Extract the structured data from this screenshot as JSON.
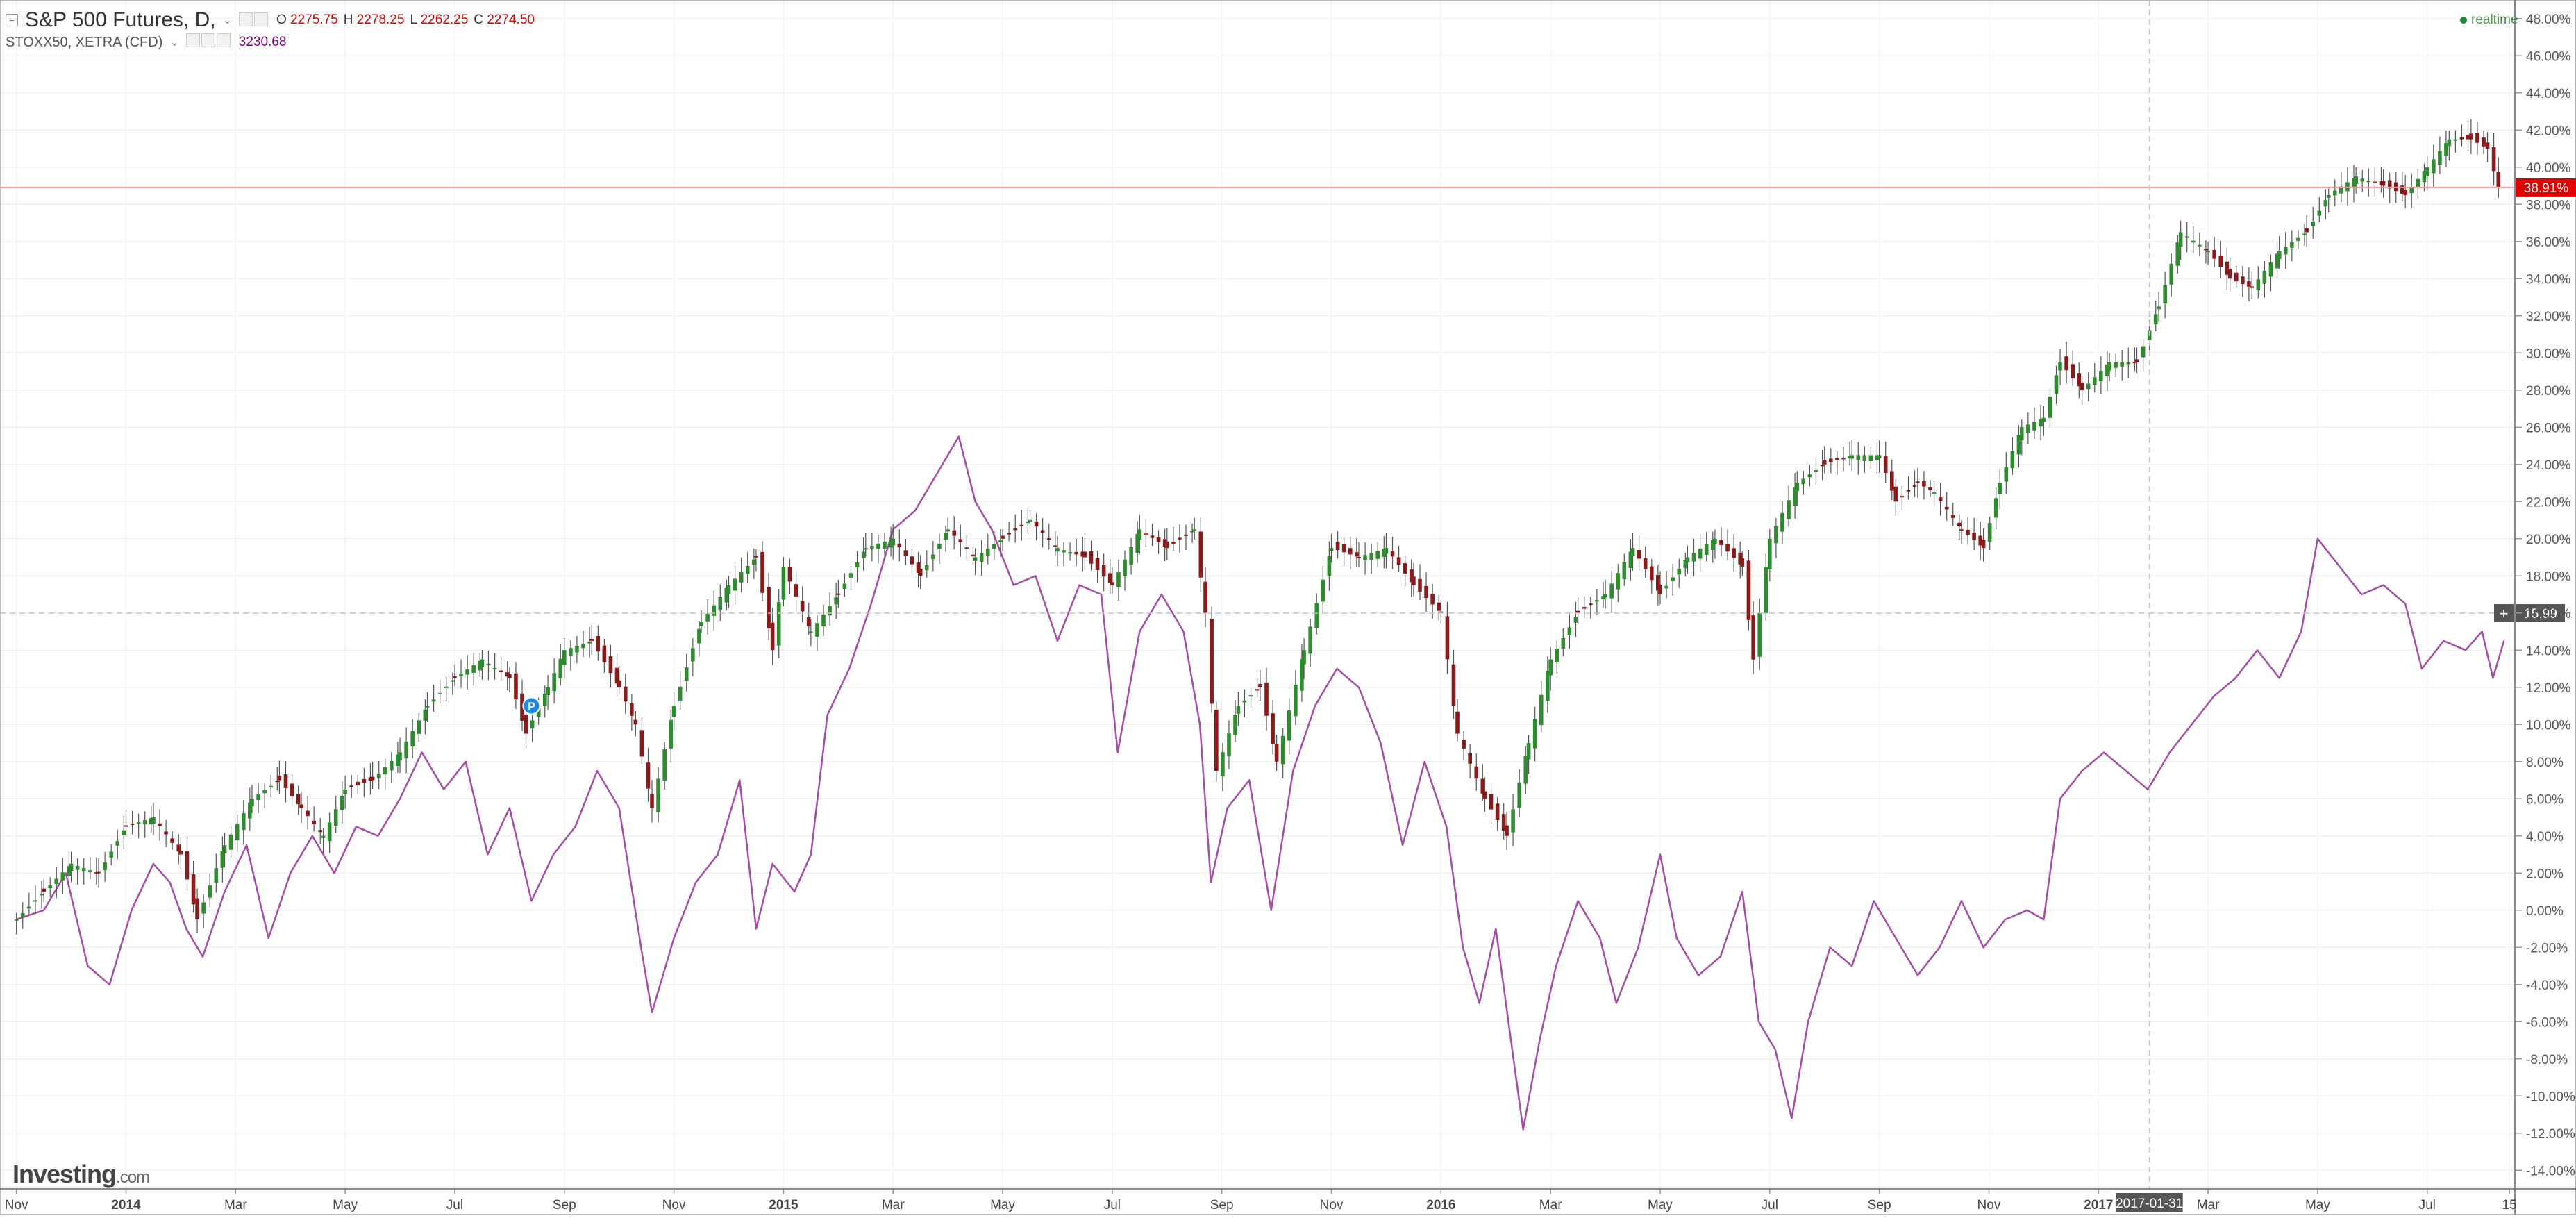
{
  "legend": {
    "main_symbol": "S&P 500 Futures, D,",
    "ohlc": [
      {
        "key": "O",
        "value": "2275.75"
      },
      {
        "key": "H",
        "value": "2278.25"
      },
      {
        "key": "L",
        "value": "2262.25"
      },
      {
        "key": "C",
        "value": "2274.50"
      }
    ],
    "compare_symbol": "STOXX50, XETRA (CFD)",
    "compare_value": "3230.68",
    "realtime_label": "realtime"
  },
  "branding": {
    "logo_text": "Investing",
    "logo_suffix": ".com"
  },
  "colors": {
    "up": "#2e8b2e",
    "down": "#8b1a1a",
    "compare_line": "#a64ca6",
    "last_price": "#e00000",
    "crosshair_badge": "#555555"
  },
  "chart_data": {
    "type": "line",
    "y_axis": {
      "unit": "%",
      "range": [
        -15,
        49
      ],
      "ticks": [
        "48.00%",
        "46.00%",
        "44.00%",
        "42.00%",
        "40.00%",
        "38.00%",
        "36.00%",
        "34.00%",
        "32.00%",
        "30.00%",
        "28.00%",
        "26.00%",
        "24.00%",
        "22.00%",
        "20.00%",
        "18.00%",
        "16.00%",
        "14.00%",
        "12.00%",
        "10.00%",
        "8.00%",
        "6.00%",
        "4.00%",
        "2.00%",
        "0.00%",
        "-2.00%",
        "-4.00%",
        "-6.00%",
        "-8.00%",
        "-10.00%",
        "-12.00%",
        "-14.00%"
      ],
      "position": "right"
    },
    "x_axis": {
      "ticks": [
        {
          "label": "Nov",
          "t": 0.0
        },
        {
          "label": "2014",
          "t": 2.0,
          "bold": true
        },
        {
          "label": "Mar",
          "t": 4.0
        },
        {
          "label": "May",
          "t": 6.0
        },
        {
          "label": "Jul",
          "t": 8.0
        },
        {
          "label": "Sep",
          "t": 10.0
        },
        {
          "label": "Nov",
          "t": 12.0
        },
        {
          "label": "2015",
          "t": 14.0,
          "bold": true
        },
        {
          "label": "Mar",
          "t": 16.0
        },
        {
          "label": "May",
          "t": 18.0
        },
        {
          "label": "Jul",
          "t": 20.0
        },
        {
          "label": "Sep",
          "t": 22.0
        },
        {
          "label": "Nov",
          "t": 24.0
        },
        {
          "label": "2016",
          "t": 26.0,
          "bold": true
        },
        {
          "label": "Mar",
          "t": 28.0
        },
        {
          "label": "May",
          "t": 30.0
        },
        {
          "label": "Jul",
          "t": 32.0
        },
        {
          "label": "Sep",
          "t": 34.0
        },
        {
          "label": "Nov",
          "t": 36.0
        },
        {
          "label": "2017",
          "t": 38.0,
          "bold": true
        },
        {
          "label": "Mar",
          "t": 40.0
        },
        {
          "label": "May",
          "t": 42.0
        },
        {
          "label": "Jul",
          "t": 44.0
        },
        {
          "label": "15",
          "t": 45.5
        }
      ],
      "range": [
        -0.3,
        45.6
      ],
      "crosshair_label": "2017-01-31",
      "crosshair_t": 38.93
    },
    "grid": true,
    "last_price": {
      "value": 38.91,
      "label": "38.91%"
    },
    "crosshair_y": {
      "value": 15.99,
      "label": "15.99"
    },
    "annotations": [
      {
        "label": "P",
        "t": 9.4,
        "value": 11.0
      }
    ],
    "series": [
      {
        "style": "candlestick",
        "points": [
          {
            "t": 0,
            "v": -0.5
          },
          {
            "t": 0.5,
            "v": 1.0
          },
          {
            "t": 1,
            "v": 2.5
          },
          {
            "t": 1.5,
            "v": 2.0
          },
          {
            "t": 2,
            "v": 4.5
          },
          {
            "t": 2.5,
            "v": 5.0
          },
          {
            "t": 3,
            "v": 3.0
          },
          {
            "t": 3.3,
            "v": -0.5
          },
          {
            "t": 3.8,
            "v": 3.5
          },
          {
            "t": 4.3,
            "v": 6.0
          },
          {
            "t": 4.8,
            "v": 7.0
          },
          {
            "t": 5.2,
            "v": 5.5
          },
          {
            "t": 5.6,
            "v": 4.0
          },
          {
            "t": 6,
            "v": 6.5
          },
          {
            "t": 6.5,
            "v": 7.0
          },
          {
            "t": 7,
            "v": 8.5
          },
          {
            "t": 7.5,
            "v": 11.0
          },
          {
            "t": 8,
            "v": 12.5
          },
          {
            "t": 8.5,
            "v": 13.5
          },
          {
            "t": 9,
            "v": 12.5
          },
          {
            "t": 9.3,
            "v": 9.5
          },
          {
            "t": 9.7,
            "v": 12.0
          },
          {
            "t": 10,
            "v": 14.0
          },
          {
            "t": 10.5,
            "v": 14.5
          },
          {
            "t": 11,
            "v": 12.0
          },
          {
            "t": 11.3,
            "v": 10.0
          },
          {
            "t": 11.6,
            "v": 5.5
          },
          {
            "t": 12,
            "v": 11.0
          },
          {
            "t": 12.5,
            "v": 15.5
          },
          {
            "t": 13,
            "v": 17.5
          },
          {
            "t": 13.5,
            "v": 19.0
          },
          {
            "t": 13.8,
            "v": 14.0
          },
          {
            "t": 14,
            "v": 18.5
          },
          {
            "t": 14.5,
            "v": 15.0
          },
          {
            "t": 15,
            "v": 17.0
          },
          {
            "t": 15.5,
            "v": 19.5
          },
          {
            "t": 16,
            "v": 20.0
          },
          {
            "t": 16.5,
            "v": 18.0
          },
          {
            "t": 17,
            "v": 20.5
          },
          {
            "t": 17.5,
            "v": 19.0
          },
          {
            "t": 18,
            "v": 20.0
          },
          {
            "t": 18.5,
            "v": 21.0
          },
          {
            "t": 19,
            "v": 19.5
          },
          {
            "t": 19.5,
            "v": 19.0
          },
          {
            "t": 20,
            "v": 17.5
          },
          {
            "t": 20.5,
            "v": 20.5
          },
          {
            "t": 21,
            "v": 19.5
          },
          {
            "t": 21.5,
            "v": 20.5
          },
          {
            "t": 21.7,
            "v": 16.0
          },
          {
            "t": 21.9,
            "v": 7.5
          },
          {
            "t": 22.3,
            "v": 11.0
          },
          {
            "t": 22.7,
            "v": 12.0
          },
          {
            "t": 23,
            "v": 8.0
          },
          {
            "t": 23.5,
            "v": 14.0
          },
          {
            "t": 24,
            "v": 19.5
          },
          {
            "t": 24.5,
            "v": 19.0
          },
          {
            "t": 25,
            "v": 19.5
          },
          {
            "t": 25.5,
            "v": 17.5
          },
          {
            "t": 26,
            "v": 16.0
          },
          {
            "t": 26.3,
            "v": 9.5
          },
          {
            "t": 26.8,
            "v": 6.0
          },
          {
            "t": 27.2,
            "v": 4.0
          },
          {
            "t": 27.6,
            "v": 9.0
          },
          {
            "t": 28,
            "v": 13.5
          },
          {
            "t": 28.5,
            "v": 16.0
          },
          {
            "t": 29,
            "v": 17.0
          },
          {
            "t": 29.5,
            "v": 19.5
          },
          {
            "t": 30,
            "v": 17.0
          },
          {
            "t": 30.5,
            "v": 19.0
          },
          {
            "t": 31,
            "v": 20.0
          },
          {
            "t": 31.5,
            "v": 18.5
          },
          {
            "t": 31.7,
            "v": 13.5
          },
          {
            "t": 32,
            "v": 20.0
          },
          {
            "t": 32.5,
            "v": 23.0
          },
          {
            "t": 33,
            "v": 24.0
          },
          {
            "t": 33.5,
            "v": 24.5
          },
          {
            "t": 34,
            "v": 24.5
          },
          {
            "t": 34.3,
            "v": 22.0
          },
          {
            "t": 34.7,
            "v": 23.0
          },
          {
            "t": 35,
            "v": 22.5
          },
          {
            "t": 35.5,
            "v": 20.5
          },
          {
            "t": 35.9,
            "v": 19.5
          },
          {
            "t": 36.2,
            "v": 23.0
          },
          {
            "t": 36.6,
            "v": 26.0
          },
          {
            "t": 37,
            "v": 26.5
          },
          {
            "t": 37.3,
            "v": 29.5
          },
          {
            "t": 37.7,
            "v": 28.0
          },
          {
            "t": 38.2,
            "v": 29.5
          },
          {
            "t": 38.7,
            "v": 29.5
          },
          {
            "t": 39.1,
            "v": 32.5
          },
          {
            "t": 39.5,
            "v": 36.5
          },
          {
            "t": 40,
            "v": 35.5
          },
          {
            "t": 40.4,
            "v": 34.0
          },
          {
            "t": 40.8,
            "v": 33.5
          },
          {
            "t": 41.3,
            "v": 35.5
          },
          {
            "t": 41.8,
            "v": 36.5
          },
          {
            "t": 42.2,
            "v": 38.5
          },
          {
            "t": 42.7,
            "v": 39.5
          },
          {
            "t": 43.2,
            "v": 39.0
          },
          {
            "t": 43.6,
            "v": 38.5
          },
          {
            "t": 44,
            "v": 40.0
          },
          {
            "t": 44.4,
            "v": 41.5
          },
          {
            "t": 44.8,
            "v": 41.5
          },
          {
            "t": 45.1,
            "v": 41.0
          },
          {
            "t": 45.3,
            "v": 38.9
          }
        ]
      },
      {
        "style": "line",
        "points": [
          {
            "t": 0,
            "v": -0.5
          },
          {
            "t": 0.5,
            "v": 0.0
          },
          {
            "t": 0.9,
            "v": 2.0
          },
          {
            "t": 1.3,
            "v": -3.0
          },
          {
            "t": 1.7,
            "v": -4.0
          },
          {
            "t": 2.1,
            "v": 0.0
          },
          {
            "t": 2.5,
            "v": 2.5
          },
          {
            "t": 2.8,
            "v": 1.5
          },
          {
            "t": 3.1,
            "v": -1.0
          },
          {
            "t": 3.4,
            "v": -2.5
          },
          {
            "t": 3.8,
            "v": 1.0
          },
          {
            "t": 4.2,
            "v": 3.5
          },
          {
            "t": 4.6,
            "v": -1.5
          },
          {
            "t": 5,
            "v": 2.0
          },
          {
            "t": 5.4,
            "v": 4.0
          },
          {
            "t": 5.8,
            "v": 2.0
          },
          {
            "t": 6.2,
            "v": 4.5
          },
          {
            "t": 6.6,
            "v": 4.0
          },
          {
            "t": 7,
            "v": 6.0
          },
          {
            "t": 7.4,
            "v": 8.5
          },
          {
            "t": 7.8,
            "v": 6.5
          },
          {
            "t": 8.2,
            "v": 8.0
          },
          {
            "t": 8.6,
            "v": 3.0
          },
          {
            "t": 9,
            "v": 5.5
          },
          {
            "t": 9.4,
            "v": 0.5
          },
          {
            "t": 9.8,
            "v": 3.0
          },
          {
            "t": 10.2,
            "v": 4.5
          },
          {
            "t": 10.6,
            "v": 7.5
          },
          {
            "t": 11,
            "v": 5.5
          },
          {
            "t": 11.4,
            "v": -2.0
          },
          {
            "t": 11.6,
            "v": -5.5
          },
          {
            "t": 12,
            "v": -1.5
          },
          {
            "t": 12.4,
            "v": 1.5
          },
          {
            "t": 12.8,
            "v": 3.0
          },
          {
            "t": 13.2,
            "v": 7.0
          },
          {
            "t": 13.5,
            "v": -1.0
          },
          {
            "t": 13.8,
            "v": 2.5
          },
          {
            "t": 14.2,
            "v": 1.0
          },
          {
            "t": 14.5,
            "v": 3.0
          },
          {
            "t": 14.8,
            "v": 10.5
          },
          {
            "t": 15.2,
            "v": 13.0
          },
          {
            "t": 15.6,
            "v": 16.5
          },
          {
            "t": 16,
            "v": 20.5
          },
          {
            "t": 16.4,
            "v": 21.5
          },
          {
            "t": 16.8,
            "v": 23.5
          },
          {
            "t": 17.2,
            "v": 25.5
          },
          {
            "t": 17.5,
            "v": 22.0
          },
          {
            "t": 17.8,
            "v": 20.5
          },
          {
            "t": 18.2,
            "v": 17.5
          },
          {
            "t": 18.6,
            "v": 18.0
          },
          {
            "t": 19,
            "v": 14.5
          },
          {
            "t": 19.4,
            "v": 17.5
          },
          {
            "t": 19.8,
            "v": 17.0
          },
          {
            "t": 20.1,
            "v": 8.5
          },
          {
            "t": 20.5,
            "v": 15.0
          },
          {
            "t": 20.9,
            "v": 17.0
          },
          {
            "t": 21.3,
            "v": 15.0
          },
          {
            "t": 21.6,
            "v": 10.0
          },
          {
            "t": 21.8,
            "v": 1.5
          },
          {
            "t": 22.1,
            "v": 5.5
          },
          {
            "t": 22.5,
            "v": 7.0
          },
          {
            "t": 22.9,
            "v": 0.0
          },
          {
            "t": 23.3,
            "v": 7.5
          },
          {
            "t": 23.7,
            "v": 11.0
          },
          {
            "t": 24.1,
            "v": 13.0
          },
          {
            "t": 24.5,
            "v": 12.0
          },
          {
            "t": 24.9,
            "v": 9.0
          },
          {
            "t": 25.3,
            "v": 3.5
          },
          {
            "t": 25.7,
            "v": 8.0
          },
          {
            "t": 26.1,
            "v": 4.5
          },
          {
            "t": 26.4,
            "v": -2.0
          },
          {
            "t": 26.7,
            "v": -5.0
          },
          {
            "t": 27,
            "v": -1.0
          },
          {
            "t": 27.3,
            "v": -7.5
          },
          {
            "t": 27.5,
            "v": -11.8
          },
          {
            "t": 27.8,
            "v": -7.0
          },
          {
            "t": 28.1,
            "v": -3.0
          },
          {
            "t": 28.5,
            "v": 0.5
          },
          {
            "t": 28.9,
            "v": -1.5
          },
          {
            "t": 29.2,
            "v": -5.0
          },
          {
            "t": 29.6,
            "v": -2.0
          },
          {
            "t": 30,
            "v": 3.0
          },
          {
            "t": 30.3,
            "v": -1.5
          },
          {
            "t": 30.7,
            "v": -3.5
          },
          {
            "t": 31.1,
            "v": -2.5
          },
          {
            "t": 31.5,
            "v": 1.0
          },
          {
            "t": 31.8,
            "v": -6.0
          },
          {
            "t": 32.1,
            "v": -7.5
          },
          {
            "t": 32.4,
            "v": -11.2
          },
          {
            "t": 32.7,
            "v": -6.0
          },
          {
            "t": 33.1,
            "v": -2.0
          },
          {
            "t": 33.5,
            "v": -3.0
          },
          {
            "t": 33.9,
            "v": 0.5
          },
          {
            "t": 34.3,
            "v": -1.5
          },
          {
            "t": 34.7,
            "v": -3.5
          },
          {
            "t": 35.1,
            "v": -2.0
          },
          {
            "t": 35.5,
            "v": 0.5
          },
          {
            "t": 35.9,
            "v": -2.0
          },
          {
            "t": 36.3,
            "v": -0.5
          },
          {
            "t": 36.7,
            "v": 0.0
          },
          {
            "t": 37,
            "v": -0.5
          },
          {
            "t": 37.3,
            "v": 6.0
          },
          {
            "t": 37.7,
            "v": 7.5
          },
          {
            "t": 38.1,
            "v": 8.5
          },
          {
            "t": 38.5,
            "v": 7.5
          },
          {
            "t": 38.9,
            "v": 6.5
          },
          {
            "t": 39.3,
            "v": 8.5
          },
          {
            "t": 39.7,
            "v": 10.0
          },
          {
            "t": 40.1,
            "v": 11.5
          },
          {
            "t": 40.5,
            "v": 12.5
          },
          {
            "t": 40.9,
            "v": 14.0
          },
          {
            "t": 41.3,
            "v": 12.5
          },
          {
            "t": 41.7,
            "v": 15.0
          },
          {
            "t": 42.0,
            "v": 20.0
          },
          {
            "t": 42.4,
            "v": 18.5
          },
          {
            "t": 42.8,
            "v": 17.0
          },
          {
            "t": 43.2,
            "v": 17.5
          },
          {
            "t": 43.6,
            "v": 16.5
          },
          {
            "t": 43.9,
            "v": 13.0
          },
          {
            "t": 44.3,
            "v": 14.5
          },
          {
            "t": 44.7,
            "v": 14.0
          },
          {
            "t": 45.0,
            "v": 15.0
          },
          {
            "t": 45.2,
            "v": 12.5
          },
          {
            "t": 45.4,
            "v": 14.5
          }
        ]
      }
    ]
  }
}
